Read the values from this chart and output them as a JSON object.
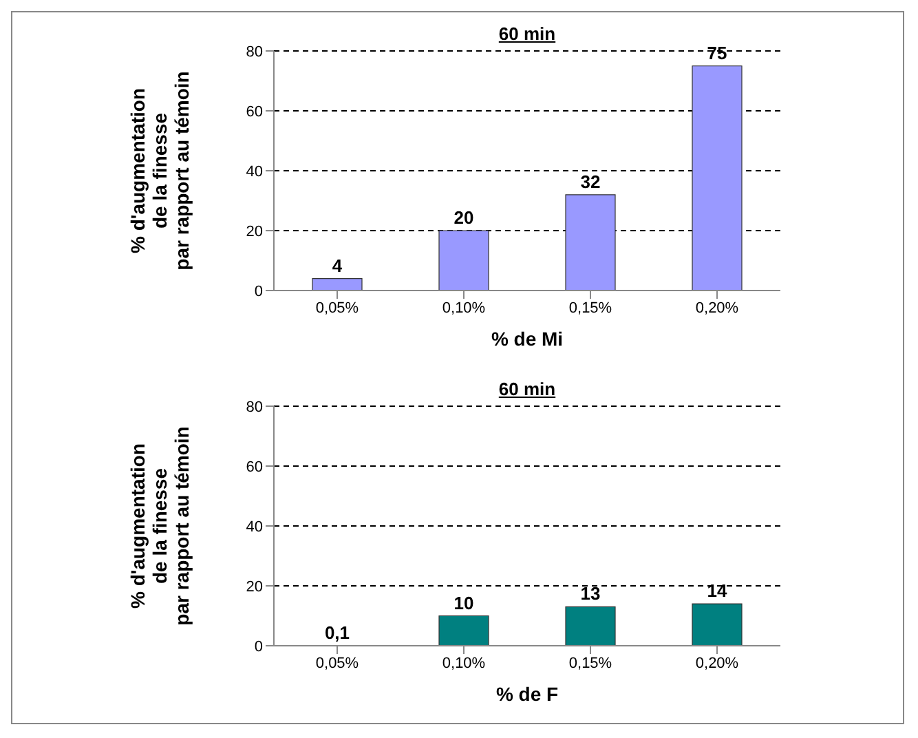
{
  "chart_data": [
    {
      "type": "bar",
      "title": "60 min",
      "xlabel": "% de Mi",
      "ylabel": "% d'augmentation\nde la finesse\npar rapport au témoin",
      "categories": [
        "0,05%",
        "0,10%",
        "0,15%",
        "0,20%"
      ],
      "values": [
        4,
        20,
        32,
        75
      ],
      "color": "#9999ff",
      "ylim": [
        0,
        80
      ],
      "yticks": [
        0,
        20,
        40,
        60,
        80
      ],
      "grid": "y",
      "line_style": "dashed",
      "data_labels": true,
      "legend": false
    },
    {
      "type": "bar",
      "title": "60 min",
      "xlabel": "% de F",
      "ylabel": "% d'augmentation\nde la finesse\npar rapport au témoin",
      "categories": [
        "0,05%",
        "0,10%",
        "0,15%",
        "0,20%"
      ],
      "values": [
        0.1,
        10,
        13,
        14
      ],
      "value_labels": [
        "0,1",
        "10",
        "13",
        "14"
      ],
      "color": "#008080",
      "ylim": [
        0,
        80
      ],
      "yticks": [
        0,
        20,
        40,
        60,
        80
      ],
      "grid": "y",
      "line_style": "dashed",
      "legend": false
    }
  ]
}
